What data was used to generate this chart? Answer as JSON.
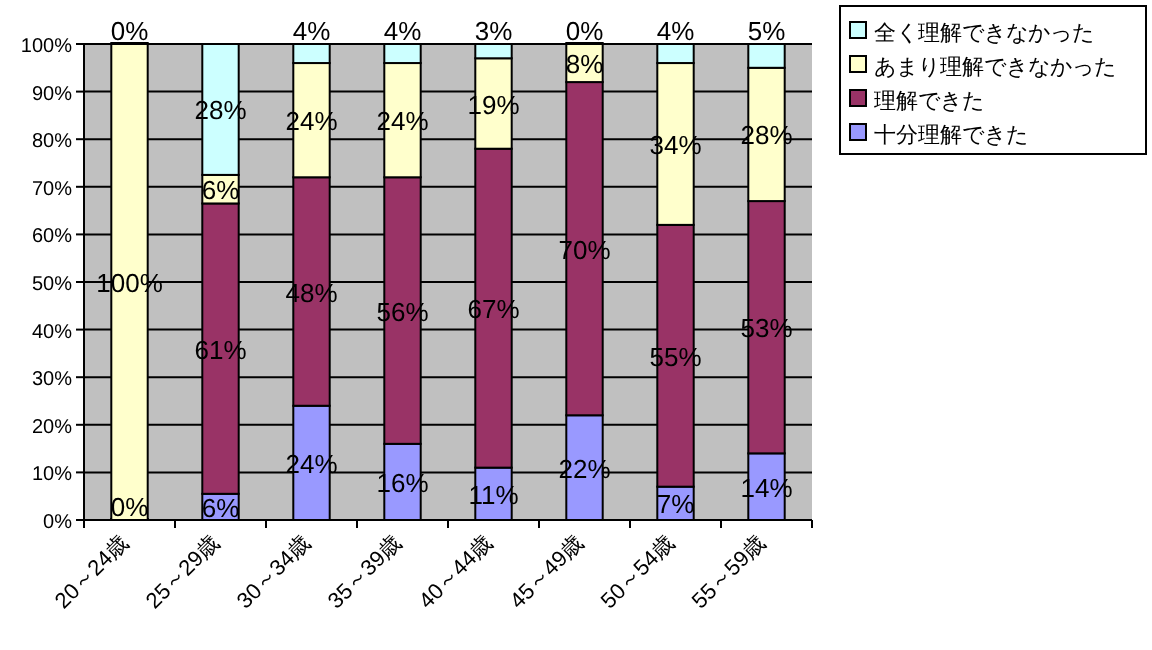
{
  "chart_data": {
    "type": "bar",
    "stacked": true,
    "categories": [
      "20～24歳",
      "25～29歳",
      "30～34歳",
      "35～39歳",
      "40～44歳",
      "45～49歳",
      "50～54歳",
      "55～59歳"
    ],
    "series": [
      {
        "name": "十分理解できた",
        "color": "#9999ff",
        "values": [
          0,
          5.5,
          24,
          16,
          11,
          22,
          7,
          14
        ],
        "value_labels": [
          "0%",
          "6%",
          "24%",
          "16%",
          "11%",
          "22%",
          "7%",
          "14%"
        ]
      },
      {
        "name": "理解できた",
        "color": "#993366",
        "values": [
          0,
          61,
          48,
          56,
          67,
          70,
          55,
          53
        ],
        "value_labels": [
          null,
          "61%",
          "48%",
          "56%",
          "67%",
          "70%",
          "55%",
          "53%"
        ]
      },
      {
        "name": "あまり理解できなかった",
        "color": "#ffffcc",
        "values": [
          100,
          6,
          24,
          24,
          19,
          8,
          34,
          28
        ],
        "value_labels": [
          "100%",
          "6%",
          "24%",
          "24%",
          "19%",
          "8%",
          "34%",
          "28%"
        ]
      },
      {
        "name": "全く理解できなかった",
        "color": "#ccffff",
        "values": [
          0,
          27.5,
          4,
          4,
          3,
          0,
          4,
          5
        ],
        "value_labels": [
          "0%",
          "28%",
          "4%",
          "4%",
          "3%",
          "0%",
          "4%",
          "5%"
        ]
      }
    ],
    "ylim": [
      0,
      100
    ],
    "yticks": [
      {
        "value": 0,
        "label": "0%"
      },
      {
        "value": 10,
        "label": "10%"
      },
      {
        "value": 20,
        "label": "20%"
      },
      {
        "value": 30,
        "label": "30%"
      },
      {
        "value": 40,
        "label": "40%"
      },
      {
        "value": 50,
        "label": "50%"
      },
      {
        "value": 60,
        "label": "60%"
      },
      {
        "value": 70,
        "label": "70%"
      },
      {
        "value": 80,
        "label": "80%"
      },
      {
        "value": 90,
        "label": "90%"
      },
      {
        "value": 100,
        "label": "100%"
      }
    ],
    "grid": "y",
    "legend": "top right"
  }
}
